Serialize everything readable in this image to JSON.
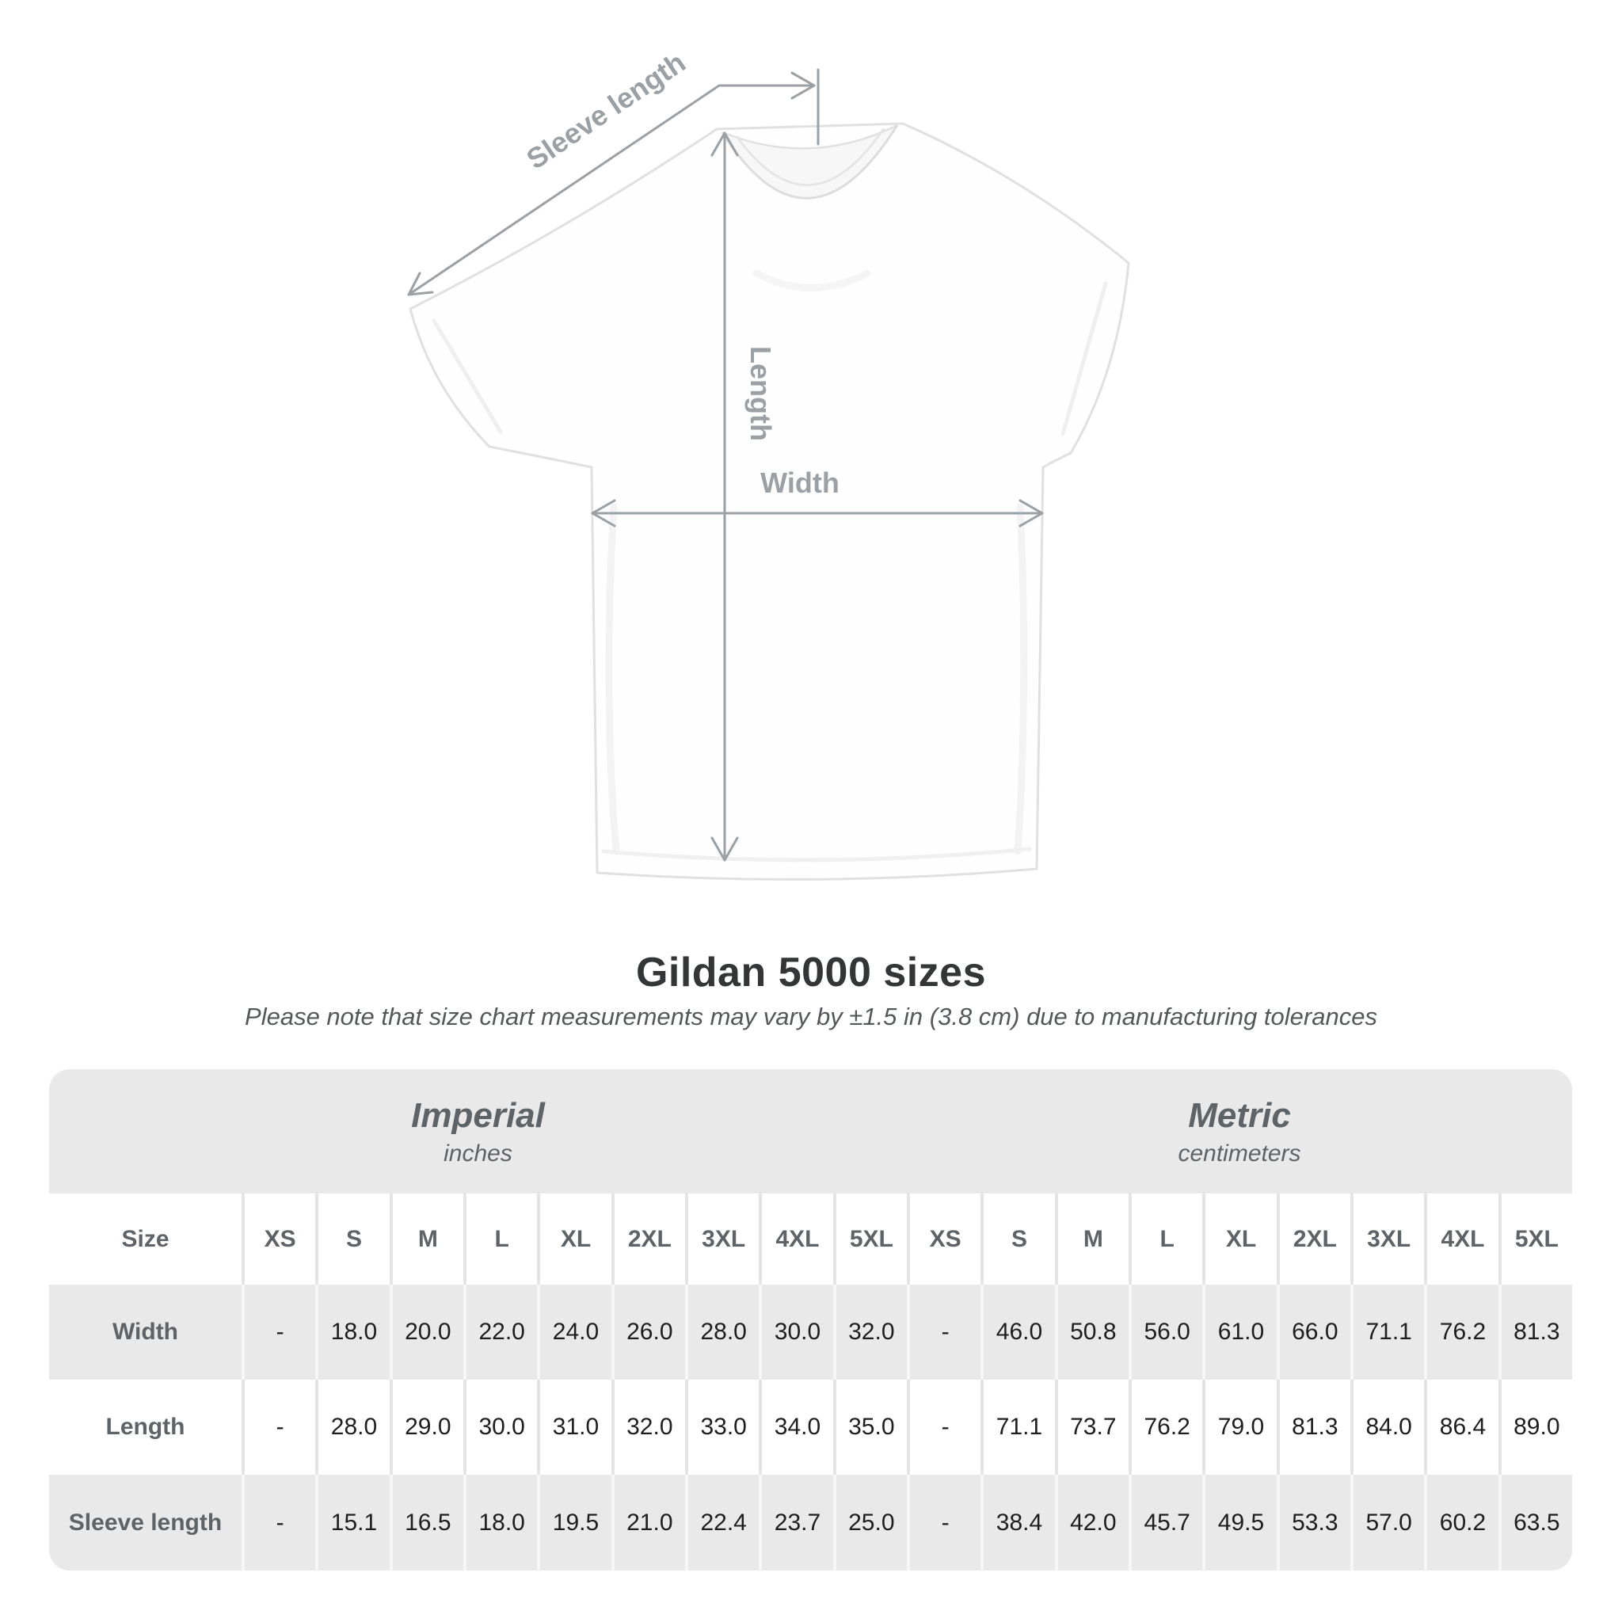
{
  "page": {
    "title": "Gildan 5000 sizes",
    "subtitle": "Please note that size chart measurements may vary by ±1.5 in (3.8 cm) due to manufacturing tolerances"
  },
  "diagram": {
    "sleeve_label": "Sleeve length",
    "length_label": "Length",
    "width_label": "Width"
  },
  "table": {
    "imperial_title": "Imperial",
    "imperial_subtitle": "inches",
    "metric_title": "Metric",
    "metric_subtitle": "centimeters",
    "size_label": "Size",
    "sizes": [
      "XS",
      "S",
      "M",
      "L",
      "XL",
      "2XL",
      "3XL",
      "4XL",
      "5XL"
    ],
    "rows": [
      {
        "label": "Width",
        "imperial": [
          "-",
          "18.0",
          "20.0",
          "22.0",
          "24.0",
          "26.0",
          "28.0",
          "30.0",
          "32.0"
        ],
        "metric": [
          "-",
          "46.0",
          "50.8",
          "56.0",
          "61.0",
          "66.0",
          "71.1",
          "76.2",
          "81.3"
        ]
      },
      {
        "label": "Length",
        "imperial": [
          "-",
          "28.0",
          "29.0",
          "30.0",
          "31.0",
          "32.0",
          "33.0",
          "34.0",
          "35.0"
        ],
        "metric": [
          "-",
          "71.1",
          "73.7",
          "76.2",
          "79.0",
          "81.3",
          "84.0",
          "86.4",
          "89.0"
        ]
      },
      {
        "label": "Sleeve length",
        "imperial": [
          "-",
          "15.1",
          "16.5",
          "18.0",
          "19.5",
          "21.0",
          "22.4",
          "23.7",
          "25.0"
        ],
        "metric": [
          "-",
          "38.4",
          "42.0",
          "45.7",
          "49.5",
          "53.3",
          "57.0",
          "60.2",
          "63.5"
        ]
      }
    ]
  },
  "colors": {
    "band_and_alt_row_bg": "#e9e9e9",
    "header_text": "#5d6366",
    "number_text": "#1e1e1e",
    "title_text": "#333537",
    "measure_line": "#9aa0a4",
    "shirt_outline": "#e0e0e0"
  },
  "chart_data": {
    "type": "table",
    "title": "Gildan 5000 sizes",
    "note": "Please note that size chart measurements may vary by ±1.5 in (3.8 cm) due to manufacturing tolerances",
    "column_groups": [
      {
        "name": "Imperial",
        "unit": "inches"
      },
      {
        "name": "Metric",
        "unit": "centimeters"
      }
    ],
    "columns": [
      "XS",
      "S",
      "M",
      "L",
      "XL",
      "2XL",
      "3XL",
      "4XL",
      "5XL"
    ],
    "rows": [
      {
        "label": "Width",
        "imperial_in": [
          null,
          18.0,
          20.0,
          22.0,
          24.0,
          26.0,
          28.0,
          30.0,
          32.0
        ],
        "metric_cm": [
          null,
          46.0,
          50.8,
          56.0,
          61.0,
          66.0,
          71.1,
          76.2,
          81.3
        ]
      },
      {
        "label": "Length",
        "imperial_in": [
          null,
          28.0,
          29.0,
          30.0,
          31.0,
          32.0,
          33.0,
          34.0,
          35.0
        ],
        "metric_cm": [
          null,
          71.1,
          73.7,
          76.2,
          79.0,
          81.3,
          84.0,
          86.4,
          89.0
        ]
      },
      {
        "label": "Sleeve length",
        "imperial_in": [
          null,
          15.1,
          16.5,
          18.0,
          19.5,
          21.0,
          22.4,
          23.7,
          25.0
        ],
        "metric_cm": [
          null,
          38.4,
          42.0,
          45.7,
          49.5,
          53.3,
          57.0,
          60.2,
          63.5
        ]
      }
    ]
  }
}
